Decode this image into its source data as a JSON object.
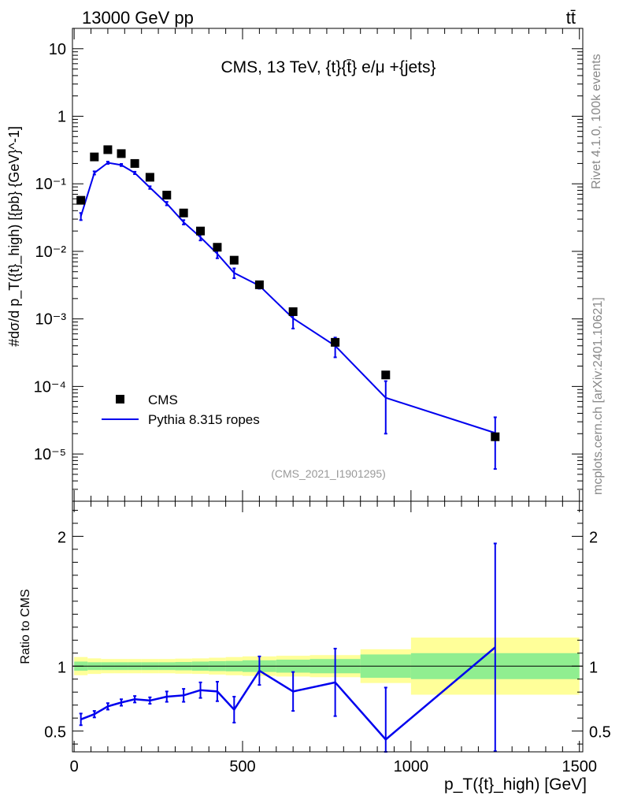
{
  "header": {
    "left_label": "13000 GeV pp",
    "right_label": "tt̄"
  },
  "side": {
    "rivet_label": "Rivet 4.1.0,  100k events",
    "site_label": "mcplots.cern.ch [arXiv:2401.10621]"
  },
  "chart_data": [
    {
      "type": "scatter",
      "title": "CMS, 13 TeV, {t}{t̄} e/μ +{jets}",
      "watermark": "(CMS_2021_I1901295)",
      "ylabel": "#dσ/d p_T({t}_high) [{pb} {GeV}^-1]",
      "yscale": "log",
      "ylim": [
        2e-06,
        20
      ],
      "xlim": [
        -5,
        1510
      ],
      "ytick_labels": [
        "10⁻⁵",
        "10⁻⁴",
        "10⁻³",
        "10⁻²",
        "10⁻¹",
        "1",
        "10"
      ],
      "legend": {
        "placement": "bottom-left",
        "entries": [
          {
            "label": "CMS",
            "style": "marker",
            "color": "#000000"
          },
          {
            "label": "Pythia 8.315 ropes",
            "style": "line",
            "color": "#0000ee"
          }
        ]
      },
      "series": [
        {
          "name": "CMS",
          "x": [
            20,
            60,
            100,
            140,
            180,
            225,
            275,
            325,
            375,
            425,
            475,
            550,
            650,
            775,
            925,
            1250
          ],
          "y": [
            0.057,
            0.25,
            0.32,
            0.28,
            0.2,
            0.125,
            0.068,
            0.037,
            0.02,
            0.0115,
            0.0074,
            0.0032,
            0.00128,
            0.00045,
            0.000148,
            1.8e-05
          ]
        },
        {
          "name": "Pythia 8.315 ropes",
          "x": [
            20,
            60,
            100,
            140,
            180,
            225,
            275,
            325,
            375,
            425,
            475,
            550,
            650,
            775,
            925,
            1250
          ],
          "y": [
            0.033,
            0.145,
            0.205,
            0.19,
            0.145,
            0.088,
            0.051,
            0.027,
            0.0162,
            0.0092,
            0.0048,
            0.0031,
            0.00102,
            0.0004,
            6.8e-05,
            2.05e-05
          ],
          "yerr_lo": [
            0.004,
            0.008,
            0.008,
            0.007,
            0.006,
            0.004,
            0.003,
            0.002,
            0.0017,
            0.0013,
            0.0008,
            0.0003,
            0.0003,
            0.00013,
            4.8e-05,
            1.45e-05
          ],
          "yerr_hi": [
            0.004,
            0.008,
            0.008,
            0.007,
            0.006,
            0.004,
            0.003,
            0.002,
            0.0017,
            0.0013,
            0.0008,
            0.0003,
            0.0003,
            0.00013,
            5.2e-05,
            1.45e-05
          ]
        }
      ]
    },
    {
      "type": "line",
      "ylabel": "Ratio to CMS",
      "xlabel": "p_T({t}_high) [GeV]",
      "xlim": [
        -5,
        1510
      ],
      "ylim": [
        0.34,
        2.27
      ],
      "xticks": [
        0,
        500,
        1000,
        1500
      ],
      "xtick_labels": [
        "0",
        "500",
        "1000",
        "1500"
      ],
      "yticks": [
        0.5,
        1,
        2
      ],
      "ytick_labels": [
        "0.5",
        "1",
        "2"
      ],
      "bands": {
        "edges": [
          0,
          40,
          80,
          120,
          160,
          200,
          250,
          300,
          350,
          400,
          450,
          500,
          600,
          700,
          850,
          1000,
          1500
        ],
        "yellow_half": [
          0.07,
          0.06,
          0.055,
          0.055,
          0.055,
          0.055,
          0.055,
          0.058,
          0.06,
          0.065,
          0.07,
          0.075,
          0.08,
          0.085,
          0.13,
          0.22,
          0.22
        ],
        "green_half": [
          0.035,
          0.03,
          0.03,
          0.03,
          0.03,
          0.03,
          0.03,
          0.032,
          0.035,
          0.038,
          0.04,
          0.045,
          0.05,
          0.055,
          0.09,
          0.1,
          0.1
        ],
        "green_color": "#90ee90",
        "yellow_color": "#ffff99"
      },
      "series": [
        {
          "name": "Pythia 8.315 ropes / CMS",
          "x": [
            20,
            60,
            100,
            140,
            180,
            225,
            275,
            325,
            375,
            425,
            475,
            550,
            650,
            775,
            925,
            1250
          ],
          "y": [
            0.59,
            0.63,
            0.69,
            0.72,
            0.745,
            0.735,
            0.765,
            0.775,
            0.815,
            0.805,
            0.665,
            0.965,
            0.805,
            0.875,
            0.435,
            1.145
          ],
          "yerr": [
            0.045,
            0.025,
            0.025,
            0.025,
            0.025,
            0.025,
            0.04,
            0.05,
            0.06,
            0.075,
            0.1,
            0.11,
            0.15,
            0.26,
            0.4,
            0.8
          ],
          "color": "#0000ee"
        }
      ]
    }
  ]
}
